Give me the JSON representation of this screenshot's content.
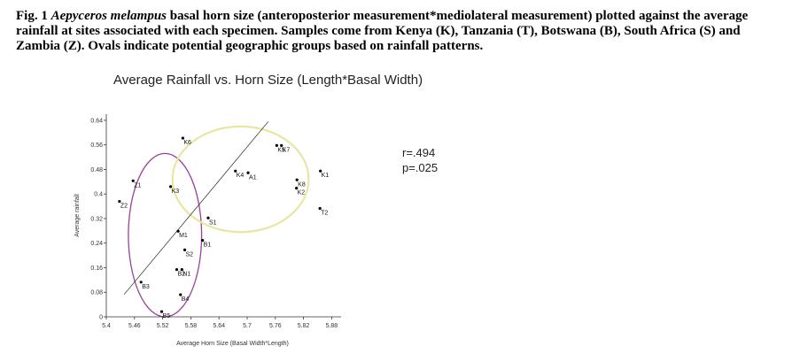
{
  "caption": {
    "prefix": "Fig. 1 ",
    "species": "Aepyceros melampus",
    "text": " basal horn size (anteroposterior measurement*mediolateral measurement) plotted against the average rainfall at sites associated with each specimen. Samples come from Kenya (K), Tanzania (T), Botswana (B), South Africa (S) and Zambia (Z). Ovals indicate potential geographic groups based on rainfall patterns."
  },
  "stats": {
    "r": "r=.494",
    "p": "p=.025"
  },
  "chart_data": {
    "type": "scatter",
    "title": "Average Rainfall vs. Horn Size (Length*Basal Width)",
    "xlabel": "Average Horn Size (Basal Width*Length)",
    "ylabel": "Average rainfall",
    "xlim": [
      5.4,
      5.9
    ],
    "ylim": [
      0,
      0.66
    ],
    "x_ticks": [
      "5.4",
      "5.46",
      "5.52",
      "5.58",
      "5.64",
      "5.7",
      "5.76",
      "5.82",
      "5.88"
    ],
    "x_tick_values": [
      5.4,
      5.46,
      5.52,
      5.58,
      5.64,
      5.7,
      5.76,
      5.82,
      5.88
    ],
    "y_ticks": [
      "0",
      "0.08",
      "0.16",
      "0.24",
      "0.32",
      "0.4",
      "0.48",
      "0.56",
      "0.64"
    ],
    "y_tick_values": [
      0,
      0.08,
      0.16,
      0.24,
      0.32,
      0.4,
      0.48,
      0.56,
      0.64
    ],
    "grid": false,
    "points": [
      {
        "label": "K6",
        "x": 5.563,
        "y": 0.582
      },
      {
        "label": "K5",
        "x": 5.763,
        "y": 0.558
      },
      {
        "label": "K7",
        "x": 5.773,
        "y": 0.558
      },
      {
        "label": "K4",
        "x": 5.675,
        "y": 0.475
      },
      {
        "label": "A1",
        "x": 5.702,
        "y": 0.469
      },
      {
        "label": "K1",
        "x": 5.856,
        "y": 0.475
      },
      {
        "label": "K8",
        "x": 5.806,
        "y": 0.446
      },
      {
        "label": "K2",
        "x": 5.805,
        "y": 0.419
      },
      {
        "label": "T2",
        "x": 5.855,
        "y": 0.353
      },
      {
        "label": "Z1",
        "x": 5.457,
        "y": 0.443
      },
      {
        "label": "K3",
        "x": 5.537,
        "y": 0.424
      },
      {
        "label": "Z2",
        "x": 5.428,
        "y": 0.376
      },
      {
        "label": "S1",
        "x": 5.617,
        "y": 0.322
      },
      {
        "label": "M1",
        "x": 5.553,
        "y": 0.279
      },
      {
        "label": "B1",
        "x": 5.605,
        "y": 0.249
      },
      {
        "label": "S2",
        "x": 5.567,
        "y": 0.218
      },
      {
        "label": "B2",
        "x": 5.55,
        "y": 0.154
      },
      {
        "label": "N1",
        "x": 5.561,
        "y": 0.154
      },
      {
        "label": "B3",
        "x": 5.474,
        "y": 0.113
      },
      {
        "label": "B4",
        "x": 5.558,
        "y": 0.072
      },
      {
        "label": "B5",
        "x": 5.518,
        "y": 0.017
      }
    ],
    "trendline": {
      "x": [
        5.438,
        5.745
      ],
      "y": [
        0.073,
        0.636
      ]
    },
    "ovals": [
      {
        "name": "low-rainfall group",
        "color": "#9b3f9b",
        "cx": 5.525,
        "cy": 0.266,
        "rx": 0.078,
        "ry": 0.266
      },
      {
        "name": "high-rainfall group",
        "color": "#e8e6a0",
        "cx": 5.686,
        "cy": 0.448,
        "rx": 0.145,
        "ry": 0.172
      }
    ]
  }
}
